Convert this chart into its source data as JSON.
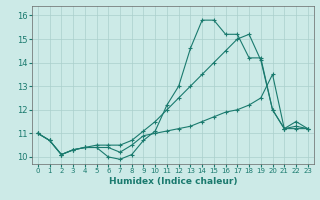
{
  "xlabel": "Humidex (Indice chaleur)",
  "xlim": [
    -0.5,
    23.5
  ],
  "ylim": [
    9.7,
    16.4
  ],
  "yticks": [
    10,
    11,
    12,
    13,
    14,
    15,
    16
  ],
  "xticks": [
    0,
    1,
    2,
    3,
    4,
    5,
    6,
    7,
    8,
    9,
    10,
    11,
    12,
    13,
    14,
    15,
    16,
    17,
    18,
    19,
    20,
    21,
    22,
    23
  ],
  "xtick_labels": [
    "0",
    "1",
    "2",
    "3",
    "4",
    "5",
    "6",
    "7",
    "8",
    "9",
    "10",
    "11",
    "12",
    "13",
    "14",
    "15",
    "16",
    "17",
    "18",
    "19",
    "20",
    "21",
    "22",
    "23"
  ],
  "bg_color": "#cceae7",
  "grid_color": "#aacfcc",
  "line_color": "#1a7a6e",
  "lines": [
    {
      "x": [
        0,
        1,
        2,
        3,
        4,
        5,
        6,
        7,
        8,
        9,
        10,
        11,
        12,
        13,
        14,
        15,
        16,
        17,
        18,
        19,
        20,
        21,
        22,
        23
      ],
      "y": [
        11.0,
        10.7,
        10.1,
        10.3,
        10.4,
        10.4,
        10.0,
        9.9,
        10.1,
        10.7,
        11.1,
        12.2,
        13.0,
        14.6,
        15.8,
        15.8,
        15.2,
        15.2,
        14.2,
        14.2,
        12.0,
        11.2,
        11.5,
        11.2
      ]
    },
    {
      "x": [
        0,
        1,
        2,
        3,
        4,
        5,
        6,
        7,
        8,
        9,
        10,
        11,
        12,
        13,
        14,
        15,
        16,
        17,
        18,
        19,
        20,
        21,
        22,
        23
      ],
      "y": [
        11.0,
        10.7,
        10.1,
        10.3,
        10.4,
        10.4,
        10.4,
        10.2,
        10.5,
        10.9,
        11.0,
        11.1,
        11.2,
        11.3,
        11.5,
        11.7,
        11.9,
        12.0,
        12.2,
        12.5,
        13.5,
        11.2,
        11.3,
        11.2
      ]
    },
    {
      "x": [
        0,
        1,
        2,
        3,
        4,
        5,
        6,
        7,
        8,
        9,
        10,
        11,
        12,
        13,
        14,
        15,
        16,
        17,
        18,
        19,
        20,
        21,
        22,
        23
      ],
      "y": [
        11.0,
        10.7,
        10.1,
        10.3,
        10.4,
        10.5,
        10.5,
        10.5,
        10.7,
        11.1,
        11.5,
        12.0,
        12.5,
        13.0,
        13.5,
        14.0,
        14.5,
        15.0,
        15.2,
        14.1,
        12.0,
        11.2,
        11.2,
        11.2
      ]
    }
  ]
}
